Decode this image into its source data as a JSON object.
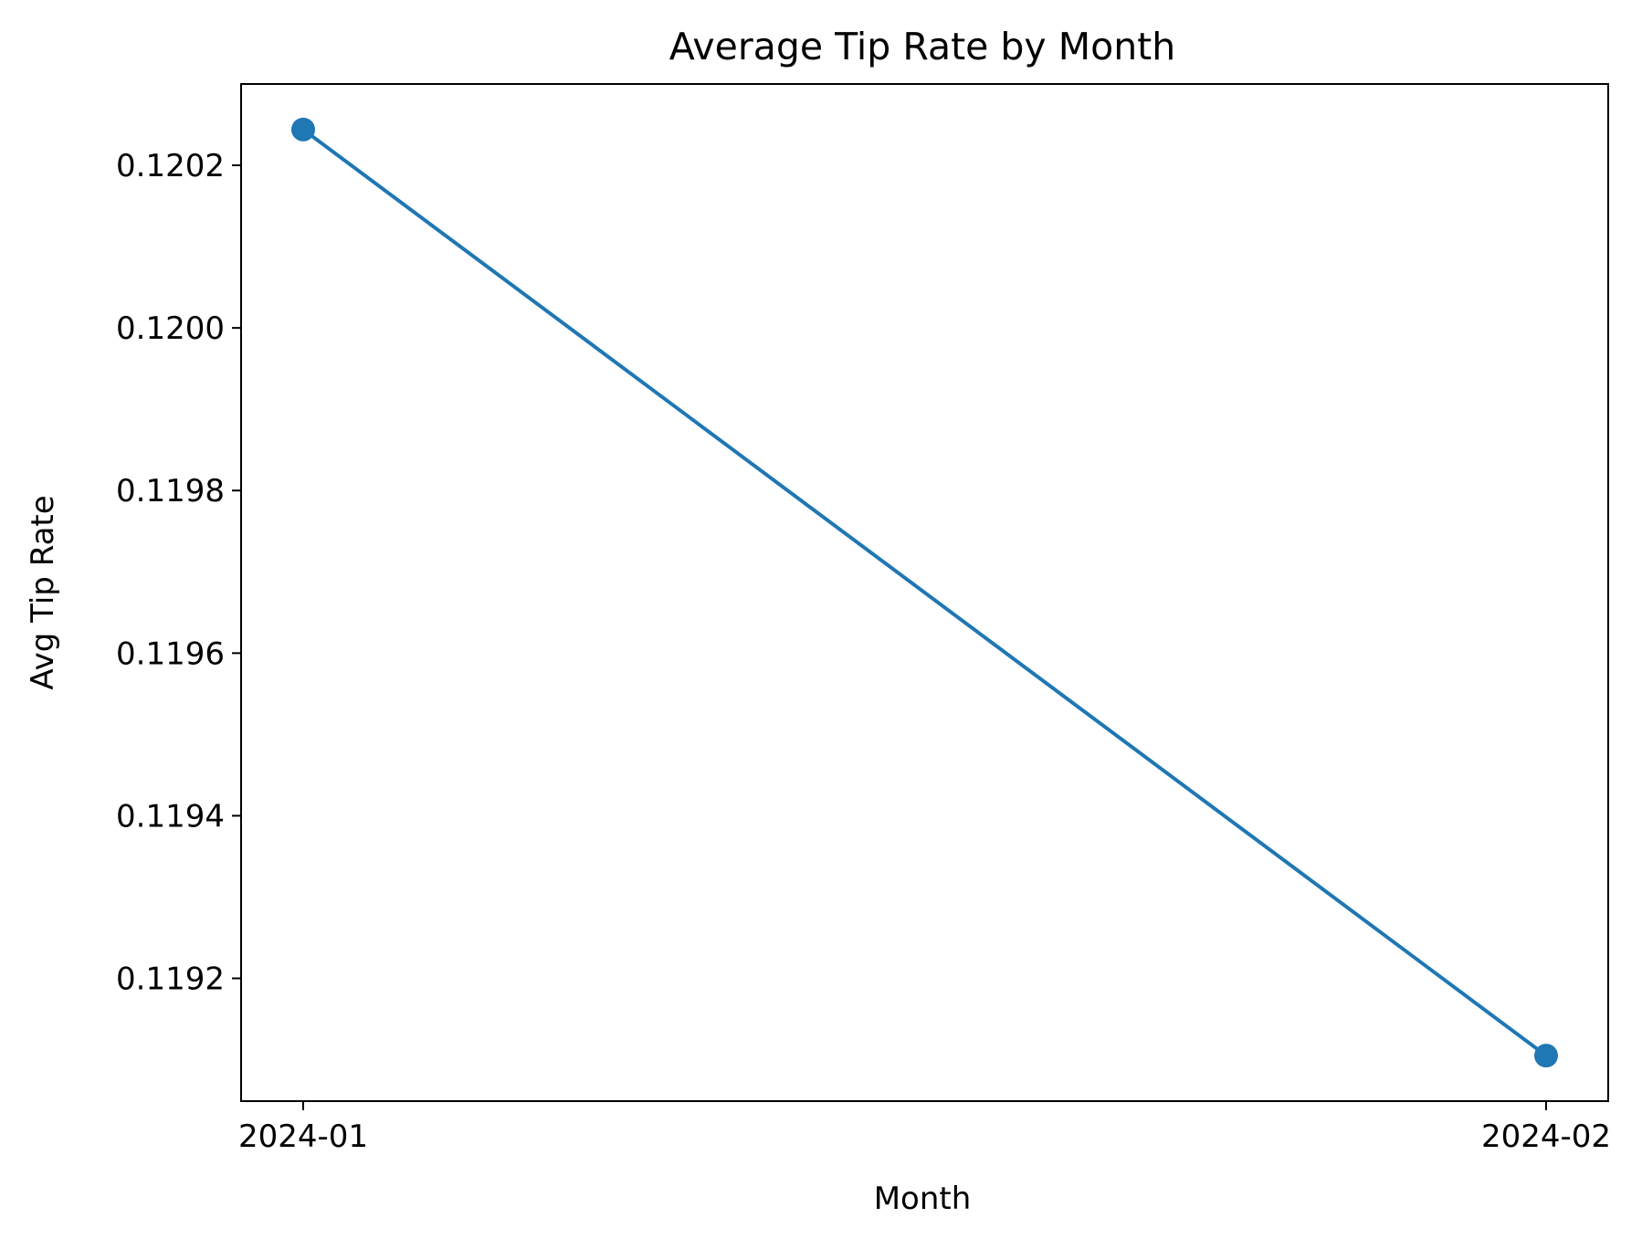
{
  "chart_data": {
    "type": "line",
    "title": "Average Tip Rate by Month",
    "xlabel": "Month",
    "ylabel": "Avg Tip Rate",
    "x": [
      "2024-01",
      "2024-02"
    ],
    "series": [
      {
        "values": [
          0.120244,
          0.119105
        ],
        "color": "#1f77b4",
        "marker": "circle"
      }
    ],
    "ylim": [
      0.119049,
      0.1203
    ],
    "yticks": [
      0.1192,
      0.1194,
      0.1196,
      0.1198,
      0.12,
      0.1202
    ],
    "ytick_labels": [
      "0.1192",
      "0.1194",
      "0.1196",
      "0.1198",
      "0.1200",
      "0.1202"
    ],
    "xtick_labels": [
      "2024-01",
      "2024-02"
    ],
    "grid": false,
    "legend": false
  }
}
